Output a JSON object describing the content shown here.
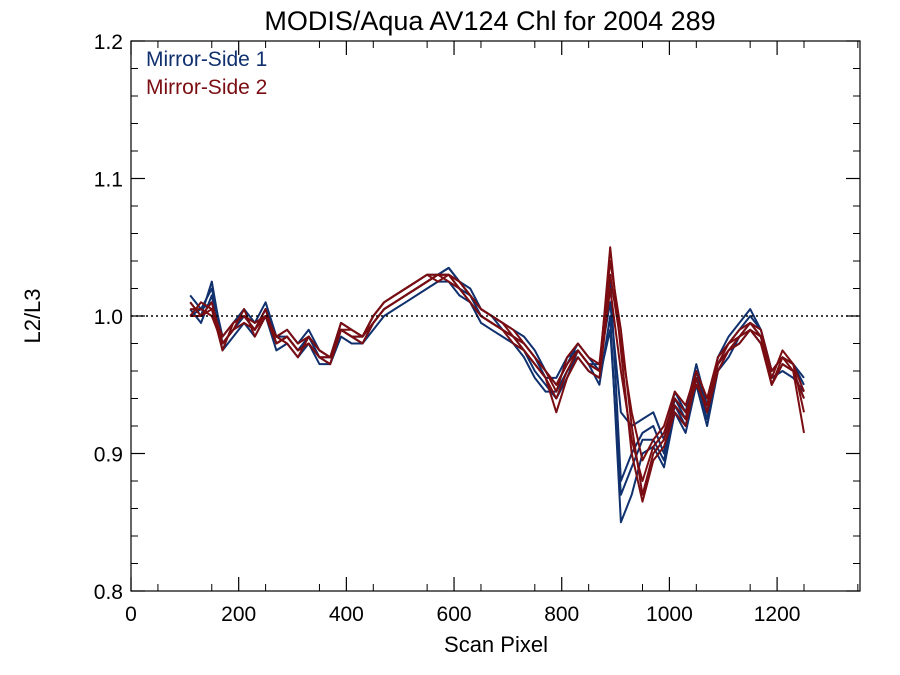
{
  "chart_data": {
    "type": "line",
    "title": "MODIS/Aqua AV124 Chl for 2004 289",
    "xlabel": "Scan Pixel",
    "ylabel": "L2/L3",
    "xlim": [
      0,
      1354
    ],
    "ylim": [
      0.8,
      1.2
    ],
    "xticks": [
      0,
      200,
      400,
      600,
      800,
      1000,
      1200
    ],
    "xtick_labels": [
      "0",
      "200",
      "400",
      "600",
      "800",
      "1000",
      "1200"
    ],
    "yticks": [
      0.8,
      0.9,
      1.0,
      1.1,
      1.2
    ],
    "ytick_labels": [
      "0.8",
      "0.9",
      "1.0",
      "1.1",
      "1.2"
    ],
    "reference_line": {
      "y": 1.0,
      "style": "dotted"
    },
    "grid": false,
    "legend_position": "top-left",
    "x": [
      110,
      130,
      150,
      170,
      190,
      210,
      230,
      250,
      270,
      290,
      310,
      330,
      350,
      370,
      390,
      410,
      430,
      450,
      470,
      490,
      510,
      530,
      550,
      570,
      590,
      610,
      630,
      650,
      670,
      690,
      710,
      730,
      750,
      770,
      790,
      810,
      830,
      850,
      870,
      890,
      910,
      930,
      950,
      970,
      990,
      1010,
      1030,
      1050,
      1070,
      1090,
      1110,
      1130,
      1150,
      1170,
      1190,
      1210,
      1230,
      1250
    ],
    "series": [
      {
        "name": "Mirror-Side 1",
        "color": "#10306e",
        "lines": [
          [
            1.015,
            1.005,
            1.02,
            0.985,
            0.995,
            1.005,
            0.995,
            1.01,
            0.985,
            0.99,
            0.98,
            0.99,
            0.975,
            0.97,
            0.995,
            0.99,
            0.985,
            1.0,
            1.01,
            1.015,
            1.02,
            1.025,
            1.03,
            1.03,
            1.035,
            1.025,
            1.02,
            1.005,
            1.0,
            0.995,
            0.99,
            0.985,
            0.975,
            0.96,
            0.95,
            0.965,
            0.98,
            0.97,
            0.96,
            1.03,
            0.88,
            0.9,
            0.915,
            0.92,
            0.9,
            0.94,
            0.925,
            0.96,
            0.93,
            0.97,
            0.98,
            0.99,
            1.0,
            0.99,
            0.96,
            0.97,
            0.965,
            0.95
          ],
          [
            1.01,
            1.0,
            1.025,
            0.98,
            0.99,
            1.0,
            0.99,
            1.005,
            0.98,
            0.985,
            0.975,
            0.985,
            0.97,
            0.965,
            0.99,
            0.985,
            0.98,
            0.995,
            1.005,
            1.01,
            1.015,
            1.02,
            1.025,
            1.03,
            1.03,
            1.02,
            1.015,
            1.0,
            0.995,
            0.99,
            0.985,
            0.975,
            0.96,
            0.95,
            0.94,
            0.955,
            0.975,
            0.965,
            0.95,
            1.0,
            0.85,
            0.87,
            0.9,
            0.905,
            0.89,
            0.93,
            0.915,
            0.95,
            0.92,
            0.96,
            0.97,
            0.985,
            0.995,
            0.985,
            0.95,
            0.965,
            0.96,
            0.94
          ],
          [
            1.005,
            0.995,
            1.015,
            0.975,
            0.985,
            0.995,
            0.985,
            1.0,
            0.975,
            0.98,
            0.97,
            0.98,
            0.965,
            0.965,
            0.985,
            0.98,
            0.98,
            0.99,
            1.0,
            1.005,
            1.01,
            1.015,
            1.02,
            1.025,
            1.025,
            1.015,
            1.01,
            0.995,
            0.99,
            0.985,
            0.98,
            0.97,
            0.955,
            0.945,
            0.945,
            0.96,
            0.97,
            0.96,
            0.955,
            0.99,
            0.87,
            0.89,
            0.91,
            0.91,
            0.895,
            0.935,
            0.92,
            0.955,
            0.925,
            0.965,
            0.975,
            0.98,
            0.99,
            0.98,
            0.955,
            0.96,
            0.955,
            0.945
          ],
          [
            1.0,
            1.005,
            1.01,
            0.98,
            0.99,
            1.0,
            0.99,
            1.005,
            0.985,
            0.985,
            0.975,
            0.985,
            0.97,
            0.97,
            0.99,
            0.985,
            0.985,
            0.995,
            1.005,
            1.01,
            1.015,
            1.02,
            1.025,
            1.03,
            1.035,
            1.025,
            1.015,
            1.005,
            1.0,
            0.99,
            0.985,
            0.98,
            0.97,
            0.955,
            0.955,
            0.97,
            0.975,
            0.965,
            0.965,
            1.01,
            0.93,
            0.92,
            0.925,
            0.93,
            0.91,
            0.945,
            0.93,
            0.965,
            0.935,
            0.97,
            0.985,
            0.995,
            1.005,
            0.99,
            0.96,
            0.97,
            0.965,
            0.955
          ]
        ]
      },
      {
        "name": "Mirror-Side 2",
        "color": "#7a0d12",
        "lines": [
          [
            1.0,
            1.01,
            1.005,
            0.975,
            0.995,
            1.0,
            0.99,
            1.0,
            0.98,
            0.985,
            0.975,
            0.98,
            0.97,
            0.965,
            0.99,
            0.985,
            0.98,
            0.995,
            1.005,
            1.01,
            1.015,
            1.02,
            1.025,
            1.03,
            1.03,
            1.02,
            1.01,
            1.0,
            0.995,
            0.99,
            0.985,
            0.975,
            0.965,
            0.955,
            0.94,
            0.96,
            0.975,
            0.965,
            0.96,
            1.05,
            0.975,
            0.9,
            0.865,
            0.895,
            0.905,
            0.93,
            0.92,
            0.955,
            0.93,
            0.96,
            0.975,
            0.985,
            0.99,
            0.98,
            0.95,
            0.97,
            0.96,
            0.915
          ],
          [
            1.01,
            1.0,
            1.01,
            0.98,
            0.99,
            1.005,
            0.985,
            1.0,
            0.985,
            0.98,
            0.97,
            0.985,
            0.975,
            0.97,
            0.995,
            0.99,
            0.985,
            1.0,
            1.01,
            1.015,
            1.02,
            1.025,
            1.03,
            1.025,
            1.03,
            1.025,
            1.015,
            1.005,
            1.0,
            0.995,
            0.99,
            0.98,
            0.97,
            0.96,
            0.945,
            0.97,
            0.98,
            0.97,
            0.965,
            1.04,
            0.99,
            0.92,
            0.87,
            0.9,
            0.91,
            0.935,
            0.925,
            0.96,
            0.94,
            0.965,
            0.98,
            0.99,
            0.995,
            0.985,
            0.955,
            0.975,
            0.965,
            0.93
          ],
          [
            1.005,
            1.005,
            1.0,
            0.98,
            0.99,
            0.995,
            0.99,
            1.005,
            0.98,
            0.985,
            0.975,
            0.98,
            0.97,
            0.97,
            0.99,
            0.985,
            0.985,
            0.995,
            1.005,
            1.01,
            1.015,
            1.02,
            1.025,
            1.03,
            1.025,
            1.02,
            1.01,
            1.0,
            0.995,
            0.99,
            0.98,
            0.975,
            0.965,
            0.955,
            0.93,
            0.955,
            0.97,
            0.96,
            0.955,
            1.02,
            0.96,
            0.91,
            0.88,
            0.905,
            0.915,
            0.94,
            0.93,
            0.95,
            0.935,
            0.965,
            0.975,
            0.98,
            0.99,
            0.985,
            0.95,
            0.965,
            0.96,
            0.94
          ],
          [
            1.0,
            1.0,
            1.005,
            0.985,
            0.995,
            1.0,
            0.995,
            1.0,
            0.985,
            0.99,
            0.98,
            0.985,
            0.975,
            0.97,
            0.99,
            0.99,
            0.985,
            1.0,
            1.01,
            1.015,
            1.02,
            1.025,
            1.03,
            1.03,
            1.03,
            1.025,
            1.015,
            1.005,
            1.0,
            0.995,
            0.985,
            0.98,
            0.97,
            0.96,
            0.95,
            0.965,
            0.975,
            0.965,
            0.96,
            1.03,
            0.98,
            0.93,
            0.895,
            0.91,
            0.92,
            0.945,
            0.935,
            0.96,
            0.94,
            0.97,
            0.98,
            0.985,
            0.995,
            0.99,
            0.96,
            0.97,
            0.965,
            0.945
          ]
        ]
      }
    ]
  }
}
